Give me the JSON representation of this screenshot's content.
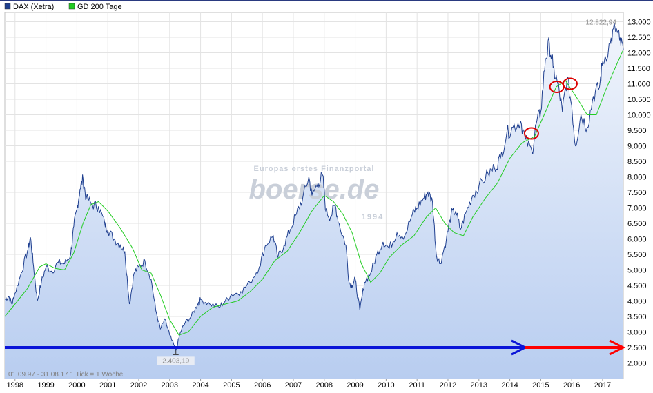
{
  "chart_data": {
    "type": "line",
    "title": "",
    "xlabel": "",
    "ylabel": "",
    "legend": [
      {
        "name": "DAX (Xetra)",
        "color": "#1f3f8f"
      },
      {
        "name": "GD 200 Tage",
        "color": "#22cc22"
      }
    ],
    "legend_position": "top-left",
    "grid": true,
    "xlim": [
      1997.67,
      2017.67
    ],
    "ylim": [
      1500,
      13300
    ],
    "y_ticks": [
      "2.000",
      "2.500",
      "3.000",
      "3.500",
      "4.000",
      "4.500",
      "5.000",
      "5.500",
      "6.000",
      "6.500",
      "7.000",
      "7.500",
      "8.000",
      "8.500",
      "9.000",
      "9.500",
      "10.000",
      "10.500",
      "11.000",
      "11.500",
      "12.000",
      "12.500",
      "13.000"
    ],
    "x_ticks": [
      "1998",
      "1999",
      "2000",
      "2001",
      "2002",
      "2003",
      "2004",
      "2005",
      "2006",
      "2007",
      "2008",
      "2009",
      "2010",
      "2011",
      "2012",
      "2013",
      "2014",
      "2015",
      "2016",
      "2017"
    ],
    "max_label": "12.822,94",
    "min_label": "2.403,19",
    "footer": "01.09.97 - 31.08.17   1 Tick = 1 Woche",
    "watermark": {
      "line1": "Europas erstes Finanzportal",
      "brand": "boerse.de",
      "year": "1994"
    },
    "series": [
      {
        "name": "DAX (Xetra)",
        "color": "#1f3f8f",
        "points": [
          [
            1997.67,
            4050
          ],
          [
            1997.8,
            4150
          ],
          [
            1997.9,
            3900
          ],
          [
            1998.0,
            4250
          ],
          [
            1998.2,
            4900
          ],
          [
            1998.4,
            5600
          ],
          [
            1998.5,
            6050
          ],
          [
            1998.6,
            5100
          ],
          [
            1998.72,
            4000
          ],
          [
            1998.85,
            4600
          ],
          [
            1999.0,
            5100
          ],
          [
            1999.2,
            4950
          ],
          [
            1999.4,
            5250
          ],
          [
            1999.6,
            5200
          ],
          [
            1999.8,
            5500
          ],
          [
            1999.9,
            6400
          ],
          [
            2000.0,
            6950
          ],
          [
            2000.1,
            7600
          ],
          [
            2000.2,
            7950
          ],
          [
            2000.3,
            7300
          ],
          [
            2000.5,
            7100
          ],
          [
            2000.7,
            7050
          ],
          [
            2000.9,
            6500
          ],
          [
            2001.0,
            6300
          ],
          [
            2001.2,
            6000
          ],
          [
            2001.4,
            5800
          ],
          [
            2001.55,
            5600
          ],
          [
            2001.7,
            3900
          ],
          [
            2001.85,
            4900
          ],
          [
            2002.0,
            5100
          ],
          [
            2002.2,
            5300
          ],
          [
            2002.4,
            4700
          ],
          [
            2002.55,
            3700
          ],
          [
            2002.7,
            3100
          ],
          [
            2002.85,
            3400
          ],
          [
            2003.0,
            2900
          ],
          [
            2003.2,
            2403
          ],
          [
            2003.35,
            3000
          ],
          [
            2003.5,
            3300
          ],
          [
            2003.7,
            3500
          ],
          [
            2003.9,
            3900
          ],
          [
            2004.0,
            4050
          ],
          [
            2004.3,
            3900
          ],
          [
            2004.6,
            3800
          ],
          [
            2004.8,
            4000
          ],
          [
            2005.0,
            4200
          ],
          [
            2005.3,
            4300
          ],
          [
            2005.6,
            4600
          ],
          [
            2005.9,
            5100
          ],
          [
            2006.1,
            5800
          ],
          [
            2006.35,
            6100
          ],
          [
            2006.5,
            5400
          ],
          [
            2006.7,
            5800
          ],
          [
            2006.9,
            6300
          ],
          [
            2007.1,
            6800
          ],
          [
            2007.3,
            7300
          ],
          [
            2007.5,
            8000
          ],
          [
            2007.6,
            7400
          ],
          [
            2007.8,
            7800
          ],
          [
            2007.95,
            8050
          ],
          [
            2008.05,
            6900
          ],
          [
            2008.2,
            6700
          ],
          [
            2008.35,
            7100
          ],
          [
            2008.5,
            6400
          ],
          [
            2008.7,
            5800
          ],
          [
            2008.8,
            4600
          ],
          [
            2008.9,
            4500
          ],
          [
            2009.0,
            4700
          ],
          [
            2009.15,
            3700
          ],
          [
            2009.3,
            4600
          ],
          [
            2009.5,
            4900
          ],
          [
            2009.7,
            5500
          ],
          [
            2009.9,
            5900
          ],
          [
            2010.1,
            5700
          ],
          [
            2010.35,
            6200
          ],
          [
            2010.6,
            6100
          ],
          [
            2010.85,
            6800
          ],
          [
            2011.0,
            7000
          ],
          [
            2011.2,
            7300
          ],
          [
            2011.35,
            7500
          ],
          [
            2011.5,
            7200
          ],
          [
            2011.62,
            5500
          ],
          [
            2011.75,
            5200
          ],
          [
            2011.95,
            6000
          ],
          [
            2012.1,
            6800
          ],
          [
            2012.25,
            6900
          ],
          [
            2012.4,
            6300
          ],
          [
            2012.6,
            6900
          ],
          [
            2012.8,
            7400
          ],
          [
            2013.0,
            7700
          ],
          [
            2013.3,
            8100
          ],
          [
            2013.5,
            8300
          ],
          [
            2013.7,
            8600
          ],
          [
            2013.9,
            9400
          ],
          [
            2014.1,
            9600
          ],
          [
            2014.35,
            9800
          ],
          [
            2014.5,
            9200
          ],
          [
            2014.72,
            8800
          ],
          [
            2014.85,
            9700
          ],
          [
            2015.0,
            10100
          ],
          [
            2015.15,
            11800
          ],
          [
            2015.28,
            12300
          ],
          [
            2015.4,
            11500
          ],
          [
            2015.55,
            11000
          ],
          [
            2015.7,
            10100
          ],
          [
            2015.85,
            11200
          ],
          [
            2016.0,
            10300
          ],
          [
            2016.12,
            9000
          ],
          [
            2016.3,
            10000
          ],
          [
            2016.5,
            9600
          ],
          [
            2016.7,
            10600
          ],
          [
            2016.9,
            10900
          ],
          [
            2017.0,
            11700
          ],
          [
            2017.25,
            12300
          ],
          [
            2017.4,
            12822
          ],
          [
            2017.55,
            12400
          ],
          [
            2017.67,
            12100
          ]
        ]
      },
      {
        "name": "GD 200 Tage",
        "color": "#22cc22",
        "points": [
          [
            1997.67,
            3500
          ],
          [
            1998.0,
            3900
          ],
          [
            1998.4,
            4400
          ],
          [
            1998.8,
            5100
          ],
          [
            1999.0,
            5200
          ],
          [
            1999.3,
            5050
          ],
          [
            1999.6,
            5000
          ],
          [
            1999.9,
            5550
          ],
          [
            2000.2,
            6500
          ],
          [
            2000.45,
            7100
          ],
          [
            2000.7,
            7200
          ],
          [
            2001.0,
            6900
          ],
          [
            2001.4,
            6350
          ],
          [
            2001.8,
            5700
          ],
          [
            2002.1,
            5000
          ],
          [
            2002.4,
            4900
          ],
          [
            2002.7,
            4200
          ],
          [
            2003.0,
            3400
          ],
          [
            2003.3,
            2900
          ],
          [
            2003.6,
            3000
          ],
          [
            2004.0,
            3500
          ],
          [
            2004.4,
            3800
          ],
          [
            2004.8,
            3900
          ],
          [
            2005.2,
            4000
          ],
          [
            2005.6,
            4300
          ],
          [
            2006.0,
            4700
          ],
          [
            2006.4,
            5300
          ],
          [
            2006.8,
            5600
          ],
          [
            2007.2,
            6200
          ],
          [
            2007.6,
            6900
          ],
          [
            2008.0,
            7400
          ],
          [
            2008.3,
            7200
          ],
          [
            2008.6,
            6800
          ],
          [
            2008.9,
            6200
          ],
          [
            2009.2,
            5200
          ],
          [
            2009.5,
            4600
          ],
          [
            2009.8,
            4900
          ],
          [
            2010.1,
            5400
          ],
          [
            2010.5,
            5800
          ],
          [
            2010.9,
            6100
          ],
          [
            2011.3,
            6700
          ],
          [
            2011.6,
            7000
          ],
          [
            2011.9,
            6500
          ],
          [
            2012.2,
            6200
          ],
          [
            2012.5,
            6100
          ],
          [
            2012.8,
            6700
          ],
          [
            2013.2,
            7300
          ],
          [
            2013.6,
            7800
          ],
          [
            2014.0,
            8600
          ],
          [
            2014.4,
            9100
          ],
          [
            2014.8,
            9300
          ],
          [
            2015.2,
            10200
          ],
          [
            2015.5,
            10900
          ],
          [
            2015.8,
            11100
          ],
          [
            2016.2,
            10500
          ],
          [
            2016.5,
            10000
          ],
          [
            2016.8,
            10000
          ],
          [
            2017.1,
            10800
          ],
          [
            2017.4,
            11500
          ],
          [
            2017.67,
            12100
          ]
        ]
      }
    ],
    "annotations": {
      "circles": [
        {
          "x": 2014.7,
          "y": 9400
        },
        {
          "x": 2015.52,
          "y": 10900
        },
        {
          "x": 2015.95,
          "y": 11000
        }
      ],
      "arrows": [
        {
          "color": "#0a14d8",
          "x1": 1997.67,
          "x2": 2014.5,
          "y": 2500
        },
        {
          "color": "#ff0000",
          "x1": 2014.5,
          "x2": 2017.67,
          "y": 2500
        }
      ]
    }
  }
}
